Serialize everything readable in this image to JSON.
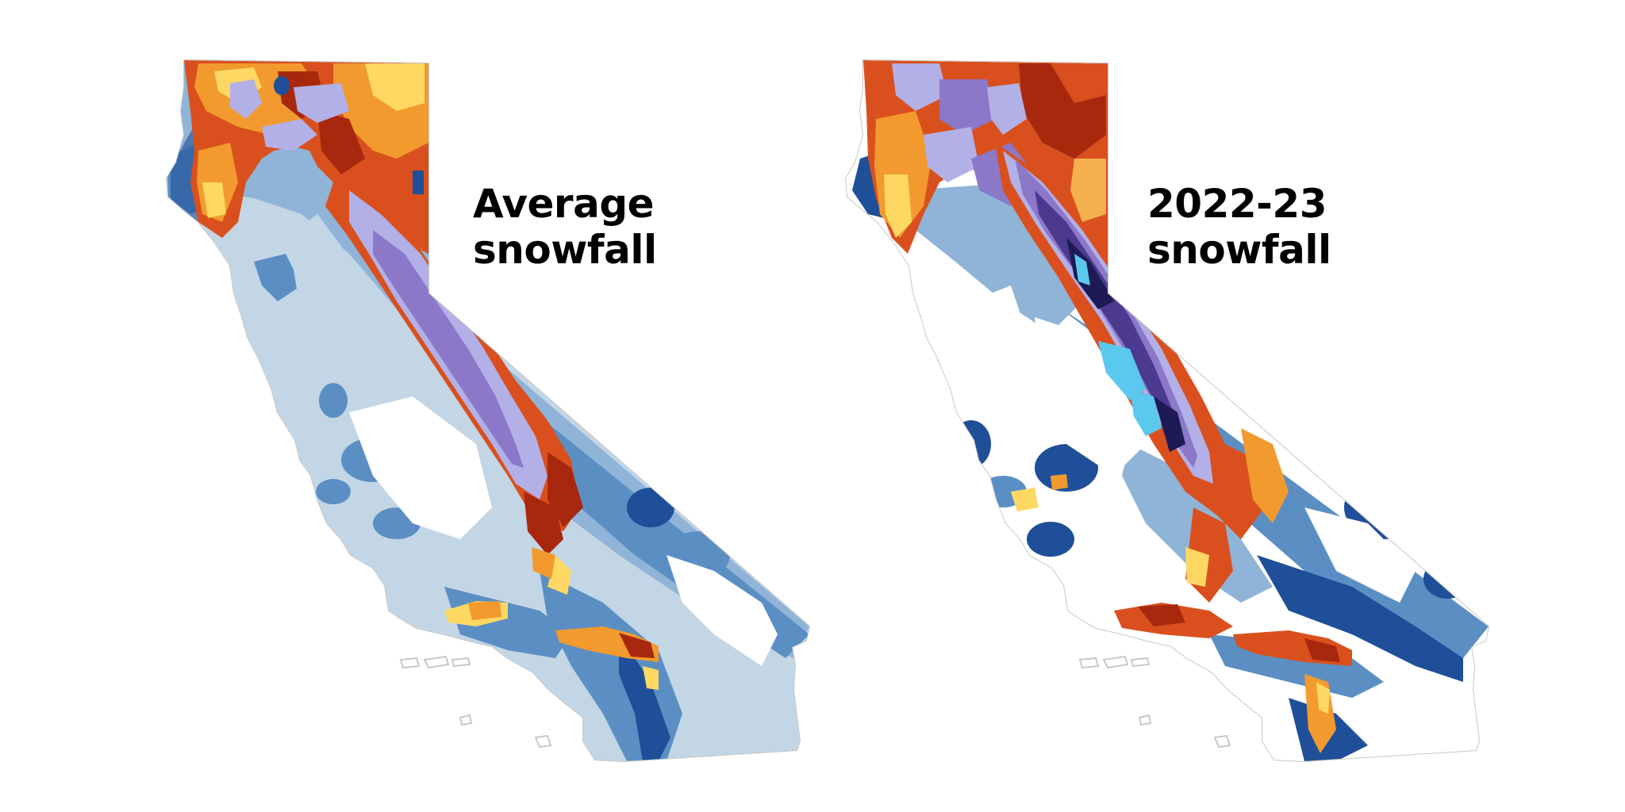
{
  "maps": [
    {
      "title_line1": "Average",
      "title_line2": "snowfall"
    },
    {
      "title_line1": "2022-23",
      "title_line2": "snowfall"
    }
  ],
  "palette": {
    "pale_blue": "#c3d6e6",
    "light_blue": "#8fb4d8",
    "mid_blue": "#5b8fc4",
    "dark_blue": "#1f4f98",
    "yellow": "#ffd863",
    "orange": "#f29a2e",
    "red_orange": "#d9501e",
    "dark_red": "#a8280e",
    "lavender": "#b3b0e8",
    "purple": "#8c78c8",
    "deep_purple": "#4b3a8f",
    "navy": "#1e1a55",
    "cyan": "#5bc8ee",
    "outline": "#c8c8c8"
  }
}
